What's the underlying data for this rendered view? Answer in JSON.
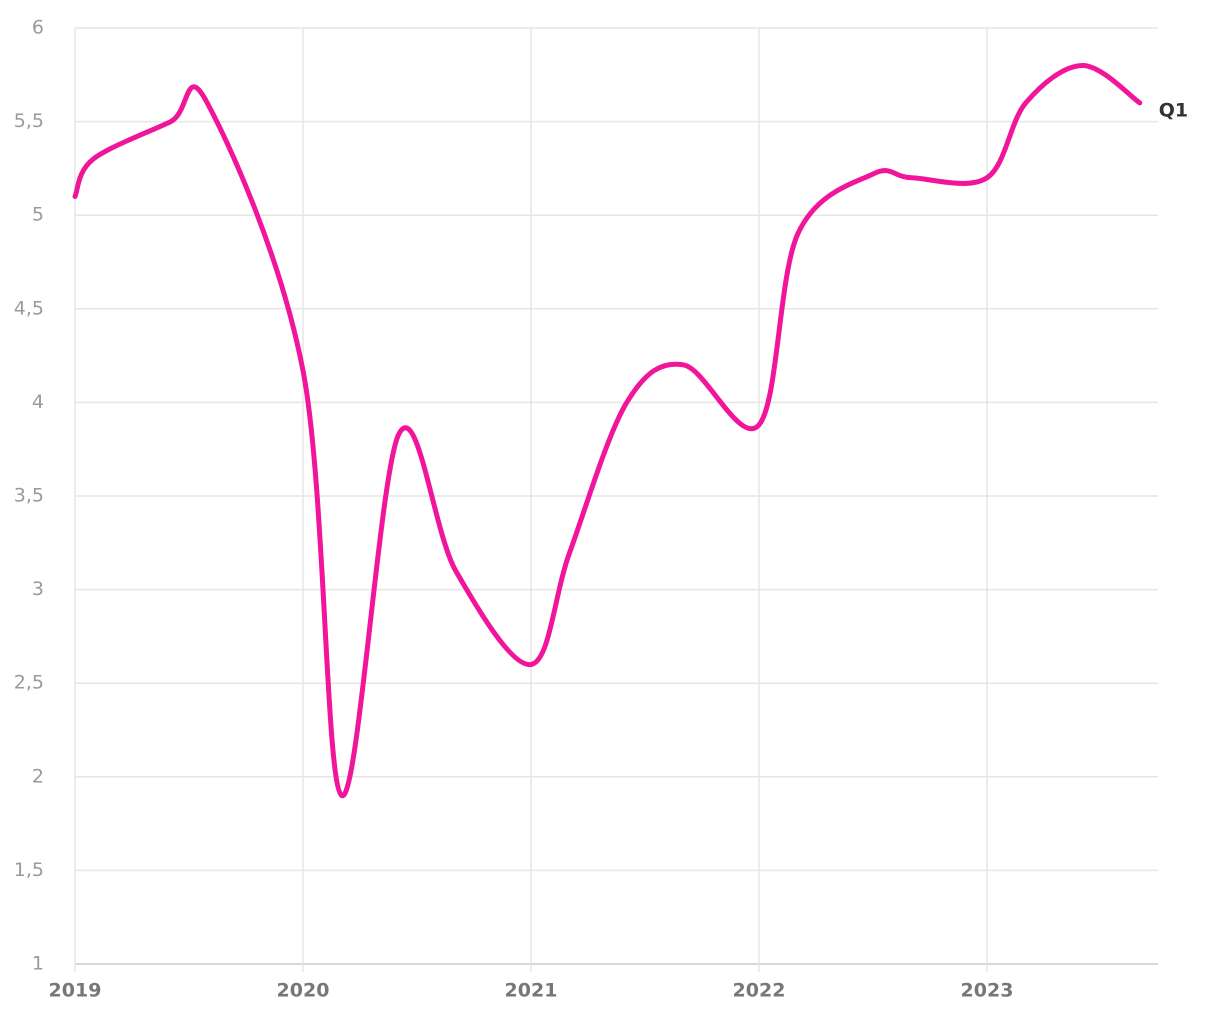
{
  "chart_data": {
    "type": "line",
    "x": [
      2019.0,
      2019.08,
      2019.42,
      2019.58,
      2020.0,
      2020.17,
      2020.42,
      2020.67,
      2021.0,
      2021.17,
      2021.42,
      2021.67,
      2022.0,
      2022.17,
      2022.5,
      2022.67,
      2023.0,
      2023.17,
      2023.42,
      2023.67
    ],
    "series": [
      {
        "name": "Q1",
        "color": "#f0159b",
        "values": [
          5.1,
          5.3,
          5.5,
          5.6,
          4.17,
          1.9,
          3.83,
          3.1,
          2.6,
          3.2,
          4.0,
          4.2,
          3.88,
          4.9,
          5.22,
          5.2,
          5.2,
          5.6,
          5.8,
          5.6
        ]
      }
    ],
    "xlim": [
      2019,
      2023.75
    ],
    "xticks": [
      2019,
      2020,
      2021,
      2022,
      2023
    ],
    "ylim": [
      1,
      6
    ],
    "yticks": [
      1,
      {
        "value": 1.5,
        "label": "1,5"
      },
      2,
      {
        "value": 2.5,
        "label": "2,5"
      },
      3,
      {
        "value": 3.5,
        "label": "3,5"
      },
      4,
      {
        "value": 4.5,
        "label": "4,5"
      },
      5,
      {
        "value": 5.5,
        "label": "5,5"
      },
      6
    ],
    "grid": true
  }
}
